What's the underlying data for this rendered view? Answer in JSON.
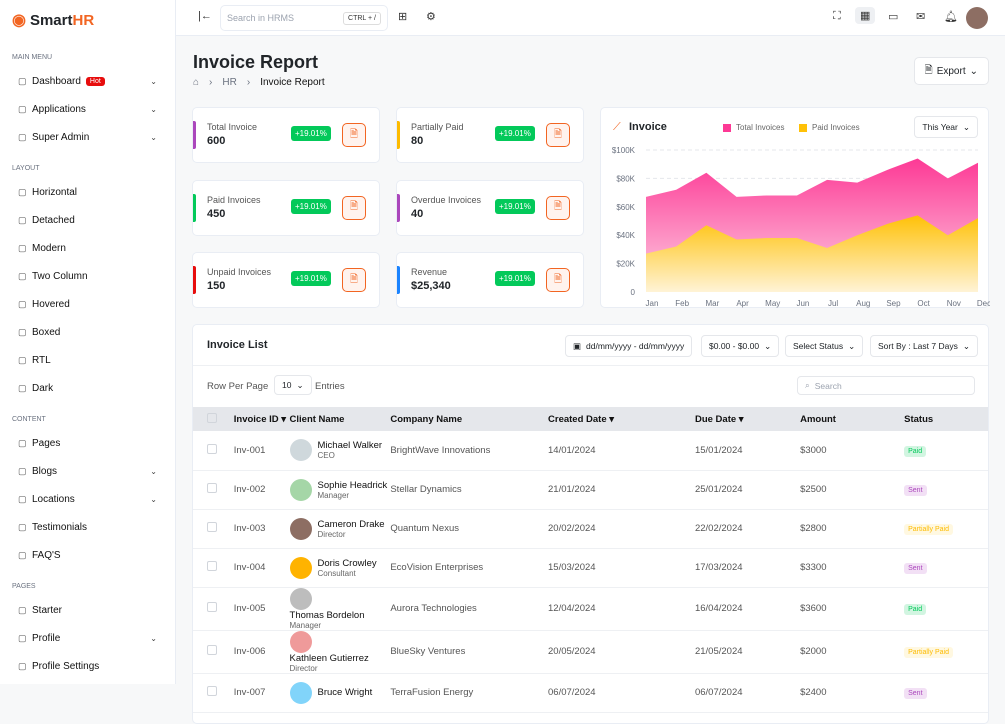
{
  "brand": {
    "name_a": "Smart",
    "name_b": "HR"
  },
  "sidebar": {
    "sections": [
      {
        "title": "Main Menu",
        "items": [
          {
            "label": "Dashboard",
            "icon": "home-icon",
            "badge": "Hot",
            "chevron": true
          },
          {
            "label": "Applications",
            "icon": "apps-icon",
            "chevron": true
          },
          {
            "label": "Super Admin",
            "icon": "user-star-icon",
            "chevron": true
          }
        ]
      },
      {
        "title": "Layout",
        "items": [
          {
            "label": "Horizontal",
            "icon": "layout-icon"
          },
          {
            "label": "Detached",
            "icon": "triangle-icon"
          },
          {
            "label": "Modern",
            "icon": "grid-icon"
          },
          {
            "label": "Two Column",
            "icon": "columns-icon"
          },
          {
            "label": "Hovered",
            "icon": "sidebar-icon"
          },
          {
            "label": "Boxed",
            "icon": "box-icon"
          },
          {
            "label": "RTL",
            "icon": "rtl-icon"
          },
          {
            "label": "Dark",
            "icon": "moon-icon"
          }
        ]
      },
      {
        "title": "Content",
        "items": [
          {
            "label": "Pages",
            "icon": "pages-icon"
          },
          {
            "label": "Blogs",
            "icon": "blog-icon",
            "chevron": true
          },
          {
            "label": "Locations",
            "icon": "location-icon",
            "chevron": true
          },
          {
            "label": "Testimonials",
            "icon": "message-icon"
          },
          {
            "label": "FAQ'S",
            "icon": "question-icon"
          }
        ]
      },
      {
        "title": "Pages",
        "items": [
          {
            "label": "Starter",
            "icon": "layout-icon"
          },
          {
            "label": "Profile",
            "icon": "user-circle-icon",
            "chevron": true
          },
          {
            "label": "Profile Settings",
            "icon": "user-cog-icon"
          }
        ]
      }
    ]
  },
  "topbar": {
    "search_placeholder": "Search in HRMS",
    "shortcut": "CTRL + /"
  },
  "page": {
    "title": "Invoice Report",
    "breadcrumb": [
      "HR",
      "Invoice Report"
    ],
    "export_label": "Export"
  },
  "stats": [
    {
      "label": "Total Invoice",
      "value": "600",
      "change": "+19.01%",
      "color": "#ab47bc"
    },
    {
      "label": "Partially Paid",
      "value": "80",
      "change": "+19.01%",
      "color": "#fdbb00"
    },
    {
      "label": "Paid Invoices",
      "value": "450",
      "change": "+19.01%",
      "color": "#03c95a"
    },
    {
      "label": "Overdue Invoices",
      "value": "40",
      "change": "+19.01%",
      "color": "#ab47bc"
    },
    {
      "label": "Unpaid Invoices",
      "value": "150",
      "change": "+19.01%",
      "color": "#e70d0d"
    },
    {
      "label": "Revenue",
      "value": "$25,340",
      "change": "+19.01%",
      "color": "#1b84ff"
    }
  ],
  "chart_data": {
    "type": "area",
    "title": "Invoice",
    "period": "This Year",
    "categories": [
      "Jan",
      "Feb",
      "Mar",
      "Apr",
      "May",
      "Jun",
      "Jul",
      "Aug",
      "Sep",
      "Oct",
      "Nov",
      "Dec"
    ],
    "y_ticks": [
      "0",
      "$20K",
      "$40K",
      "$60K",
      "$80K",
      "$100K"
    ],
    "ylim": [
      0,
      100000
    ],
    "series": [
      {
        "name": "Total Invoices",
        "color": "#fd3995",
        "values": [
          67000,
          72000,
          84000,
          67000,
          68000,
          68000,
          79000,
          77000,
          86000,
          94000,
          80000,
          91000
        ]
      },
      {
        "name": "Paid Invoices",
        "color": "#ffc107",
        "values": [
          27000,
          32000,
          47000,
          37000,
          38000,
          38000,
          31000,
          40000,
          48000,
          54000,
          40000,
          52000
        ]
      }
    ],
    "legend": "top",
    "grid": true
  },
  "list": {
    "title": "Invoice List",
    "date_range": "dd/mm/yyyy - dd/mm/yyyy",
    "amount_filter": "$0.00 - $0.00",
    "status_filter": "Select Status",
    "sort": "Sort By : Last 7 Days",
    "rows_label": "Row Per Page",
    "rows_value": "10",
    "entries_label": "Entries",
    "search_placeholder": "Search",
    "columns": [
      "Invoice ID",
      "Client Name",
      "Company Name",
      "Created Date",
      "Due Date",
      "Amount",
      "Status"
    ],
    "rows": [
      {
        "id": "Inv-001",
        "name": "Michael Walker",
        "role": "CEO",
        "company": "BrightWave Innovations",
        "created": "14/01/2024",
        "due": "15/01/2024",
        "amount": "$3000",
        "status": "Paid"
      },
      {
        "id": "Inv-002",
        "name": "Sophie Headrick",
        "role": "Manager",
        "company": "Stellar Dynamics",
        "created": "21/01/2024",
        "due": "25/01/2024",
        "amount": "$2500",
        "status": "Sent"
      },
      {
        "id": "Inv-003",
        "name": "Cameron Drake",
        "role": "Director",
        "company": "Quantum Nexus",
        "created": "20/02/2024",
        "due": "22/02/2024",
        "amount": "$2800",
        "status": "Partially Paid"
      },
      {
        "id": "Inv-004",
        "name": "Doris Crowley",
        "role": "Consultant",
        "company": "EcoVision Enterprises",
        "created": "15/03/2024",
        "due": "17/03/2024",
        "amount": "$3300",
        "status": "Sent"
      },
      {
        "id": "Inv-005",
        "name": "Thomas Bordelon",
        "role": "Manager",
        "company": "Aurora Technologies",
        "created": "12/04/2024",
        "due": "16/04/2024",
        "amount": "$3600",
        "status": "Paid"
      },
      {
        "id": "Inv-006",
        "name": "Kathleen Gutierrez",
        "role": "Director",
        "company": "BlueSky Ventures",
        "created": "20/05/2024",
        "due": "21/05/2024",
        "amount": "$2000",
        "status": "Partially Paid"
      },
      {
        "id": "Inv-007",
        "name": "Bruce Wright",
        "role": "",
        "company": "TerraFusion Energy",
        "created": "06/07/2024",
        "due": "06/07/2024",
        "amount": "$2400",
        "status": "Sent"
      }
    ]
  }
}
